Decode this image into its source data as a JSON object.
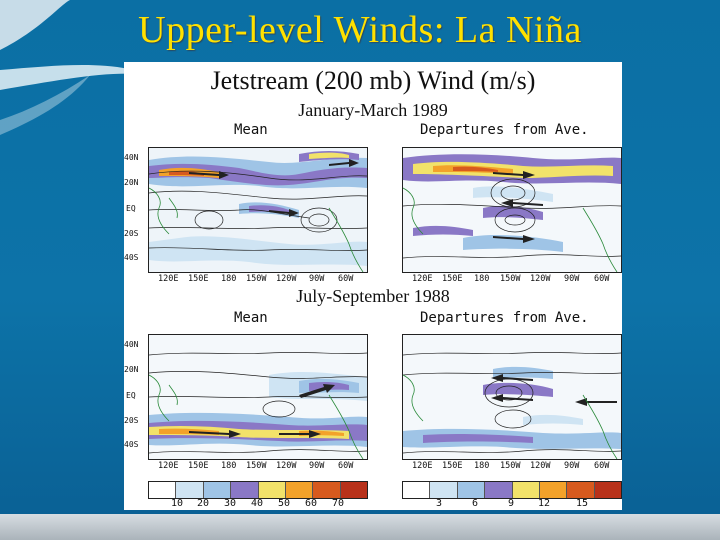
{
  "slide": {
    "title": "Upper-level Winds: La Niña"
  },
  "figure": {
    "title": "Jetstream (200 mb) Wind (m/s)",
    "top": {
      "period": "January-March 1989",
      "left_label": "Mean",
      "right_label": "Departures  from  Ave."
    },
    "bottom": {
      "period": "July-September 1988",
      "left_label": "Mean",
      "right_label": "Departures  from  Ave."
    },
    "lat_labels": [
      "40N",
      "20N",
      "EQ",
      "20S",
      "40S"
    ],
    "lon_labels": [
      "120E",
      "150E",
      "180",
      "150W",
      "120W",
      "90W",
      "60W"
    ],
    "lon_labels_top_left": [
      "120E",
      "150E",
      "180",
      "150W",
      "120W",
      "90W",
      "60W"
    ],
    "mean_colorbar": {
      "labels": [
        "10",
        "20",
        "30",
        "40",
        "50",
        "60",
        "70"
      ],
      "colors": [
        "#ffffff",
        "#cfe4f3",
        "#9fc4e6",
        "#8a78c6",
        "#f2e26a",
        "#f3a22a",
        "#d75a1e",
        "#b8311a"
      ]
    },
    "departure_colorbar": {
      "labels": [
        "3",
        "6",
        "9",
        "12",
        "15"
      ],
      "colors": [
        "#ffffff",
        "#cfe4f3",
        "#9fc4e6",
        "#8a78c6",
        "#f2e26a",
        "#f3a22a",
        "#d75a1e",
        "#b8311a"
      ]
    }
  }
}
